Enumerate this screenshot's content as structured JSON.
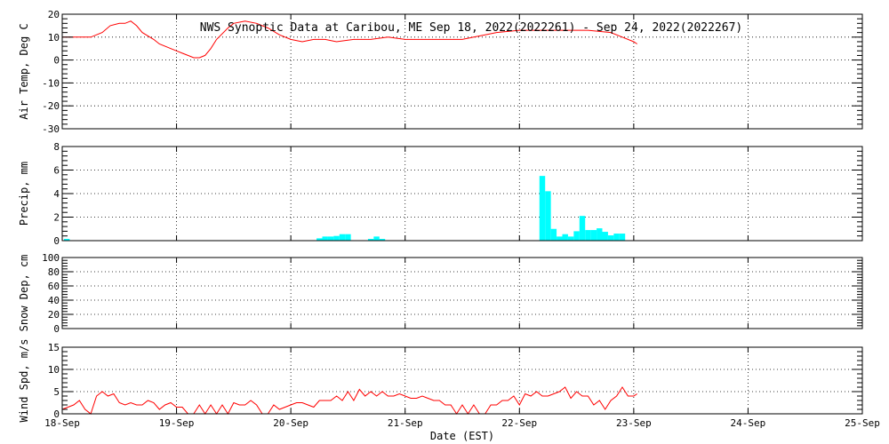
{
  "title": "NWS Synoptic Data at Caribou, ME   Sep 18, 2022(2022261) - Sep 24, 2022(2022267)",
  "xlabel": "Date (EST)",
  "colors": {
    "line": "#ff0000",
    "bar": "#00ffff",
    "axis": "#000000",
    "background": "#ffffff"
  },
  "chart_data": [
    {
      "type": "line",
      "title": "NWS Synoptic Data at Caribou, ME   Sep 18, 2022(2022261) - Sep 24, 2022(2022267)",
      "ylabel": "Air Temp, Deg C",
      "xlabel": "",
      "xlim": [
        0,
        7
      ],
      "ylim": [
        -30,
        20
      ],
      "yticks": [
        20,
        10,
        0,
        -10,
        -20,
        -30
      ],
      "xticks": [
        "18-Sep",
        "19-Sep",
        "20-Sep",
        "21-Sep",
        "22-Sep",
        "23-Sep",
        "24-Sep",
        "25-Sep"
      ],
      "grid": true,
      "series": [
        {
          "values": [
            [
              0.0,
              10
            ],
            [
              0.25,
              10
            ],
            [
              0.35,
              12
            ],
            [
              0.42,
              15
            ],
            [
              0.5,
              16
            ],
            [
              0.55,
              16
            ],
            [
              0.6,
              17
            ],
            [
              0.65,
              15
            ],
            [
              0.7,
              12
            ],
            [
              0.8,
              9
            ],
            [
              0.85,
              7
            ],
            [
              0.95,
              5
            ],
            [
              1.0,
              4
            ],
            [
              1.05,
              3
            ],
            [
              1.1,
              2
            ],
            [
              1.15,
              1
            ],
            [
              1.2,
              1
            ],
            [
              1.25,
              2
            ],
            [
              1.3,
              5
            ],
            [
              1.35,
              9
            ],
            [
              1.45,
              14
            ],
            [
              1.5,
              16
            ],
            [
              1.6,
              17
            ],
            [
              1.7,
              16
            ],
            [
              1.8,
              14
            ],
            [
              1.9,
              11
            ],
            [
              2.0,
              9
            ],
            [
              2.1,
              8
            ],
            [
              2.2,
              9
            ],
            [
              2.3,
              9
            ],
            [
              2.4,
              8
            ],
            [
              2.55,
              9
            ],
            [
              2.7,
              9
            ],
            [
              2.85,
              10
            ],
            [
              3.0,
              9
            ],
            [
              3.2,
              9
            ],
            [
              3.4,
              9
            ],
            [
              3.5,
              9
            ],
            [
              3.6,
              10
            ],
            [
              3.7,
              11
            ],
            [
              3.8,
              12
            ],
            [
              4.0,
              13
            ],
            [
              4.2,
              13
            ],
            [
              4.4,
              13
            ],
            [
              4.6,
              13
            ],
            [
              4.8,
              12
            ],
            [
              4.9,
              10
            ],
            [
              5.0,
              8
            ],
            [
              5.03,
              7
            ]
          ]
        }
      ]
    },
    {
      "type": "bar",
      "ylabel": "Precip, mm",
      "xlabel": "",
      "xlim": [
        0,
        7
      ],
      "ylim": [
        0,
        8
      ],
      "yticks": [
        8,
        6,
        4,
        2,
        0
      ],
      "xticks": [
        "18-Sep",
        "19-Sep",
        "20-Sep",
        "21-Sep",
        "22-Sep",
        "23-Sep",
        "24-Sep",
        "25-Sep"
      ],
      "grid": true,
      "series": [
        {
          "values": [
            [
              0.04,
              0.15
            ],
            [
              2.25,
              0.2
            ],
            [
              2.3,
              0.35
            ],
            [
              2.35,
              0.35
            ],
            [
              2.4,
              0.4
            ],
            [
              2.45,
              0.55
            ],
            [
              2.5,
              0.55
            ],
            [
              2.7,
              0.15
            ],
            [
              2.75,
              0.35
            ],
            [
              2.8,
              0.15
            ],
            [
              4.2,
              5.5
            ],
            [
              4.25,
              4.2
            ],
            [
              4.3,
              1.0
            ],
            [
              4.35,
              0.35
            ],
            [
              4.4,
              0.55
            ],
            [
              4.45,
              0.35
            ],
            [
              4.5,
              0.8
            ],
            [
              4.55,
              2.1
            ],
            [
              4.6,
              0.9
            ],
            [
              4.65,
              0.9
            ],
            [
              4.7,
              1.05
            ],
            [
              4.75,
              0.75
            ],
            [
              4.8,
              0.45
            ],
            [
              4.85,
              0.6
            ],
            [
              4.9,
              0.6
            ]
          ]
        }
      ]
    },
    {
      "type": "line",
      "ylabel": "Snow Dep, cm",
      "xlabel": "",
      "xlim": [
        0,
        7
      ],
      "ylim": [
        0,
        100
      ],
      "yticks": [
        100,
        80,
        60,
        40,
        20,
        0
      ],
      "xticks": [
        "18-Sep",
        "19-Sep",
        "20-Sep",
        "21-Sep",
        "22-Sep",
        "23-Sep",
        "24-Sep",
        "25-Sep"
      ],
      "grid": true,
      "series": [
        {
          "values": []
        }
      ]
    },
    {
      "type": "line",
      "ylabel": "Wind Spd, m/s",
      "xlabel": "Date (EST)",
      "xlim": [
        0,
        7
      ],
      "ylim": [
        0,
        15
      ],
      "yticks": [
        15,
        10,
        5,
        0
      ],
      "xticks": [
        "18-Sep",
        "19-Sep",
        "20-Sep",
        "21-Sep",
        "22-Sep",
        "23-Sep",
        "24-Sep",
        "25-Sep"
      ],
      "grid": true,
      "series": [
        {
          "values": [
            [
              0.0,
              1
            ],
            [
              0.05,
              1.5
            ],
            [
              0.1,
              2
            ],
            [
              0.15,
              3
            ],
            [
              0.2,
              1
            ],
            [
              0.25,
              0
            ],
            [
              0.3,
              4
            ],
            [
              0.35,
              5
            ],
            [
              0.4,
              4
            ],
            [
              0.45,
              4.5
            ],
            [
              0.5,
              2.5
            ],
            [
              0.55,
              2
            ],
            [
              0.6,
              2.5
            ],
            [
              0.65,
              2
            ],
            [
              0.7,
              2
            ],
            [
              0.75,
              3
            ],
            [
              0.8,
              2.5
            ],
            [
              0.85,
              1
            ],
            [
              0.9,
              2
            ],
            [
              0.95,
              2.5
            ],
            [
              1.0,
              1.5
            ],
            [
              1.05,
              1.5
            ],
            [
              1.1,
              0
            ],
            [
              1.15,
              0
            ],
            [
              1.2,
              2
            ],
            [
              1.25,
              0
            ],
            [
              1.3,
              2
            ],
            [
              1.35,
              0
            ],
            [
              1.4,
              2
            ],
            [
              1.45,
              0
            ],
            [
              1.5,
              2.5
            ],
            [
              1.55,
              2
            ],
            [
              1.6,
              2
            ],
            [
              1.65,
              3
            ],
            [
              1.7,
              2
            ],
            [
              1.75,
              0
            ],
            [
              1.8,
              0
            ],
            [
              1.85,
              2
            ],
            [
              1.9,
              1
            ],
            [
              1.95,
              1.5
            ],
            [
              2.0,
              2
            ],
            [
              2.05,
              2.5
            ],
            [
              2.1,
              2.5
            ],
            [
              2.15,
              2
            ],
            [
              2.2,
              1.5
            ],
            [
              2.25,
              3
            ],
            [
              2.3,
              3
            ],
            [
              2.35,
              3
            ],
            [
              2.4,
              4
            ],
            [
              2.45,
              3
            ],
            [
              2.5,
              5
            ],
            [
              2.55,
              3
            ],
            [
              2.6,
              5.5
            ],
            [
              2.65,
              4
            ],
            [
              2.7,
              5
            ],
            [
              2.75,
              4
            ],
            [
              2.8,
              5
            ],
            [
              2.85,
              4
            ],
            [
              2.9,
              4
            ],
            [
              2.95,
              4.5
            ],
            [
              3.0,
              4
            ],
            [
              3.05,
              3.5
            ],
            [
              3.1,
              3.5
            ],
            [
              3.15,
              4
            ],
            [
              3.2,
              3.5
            ],
            [
              3.25,
              3
            ],
            [
              3.3,
              3
            ],
            [
              3.35,
              2
            ],
            [
              3.4,
              2
            ],
            [
              3.45,
              0
            ],
            [
              3.5,
              2
            ],
            [
              3.55,
              0
            ],
            [
              3.6,
              2
            ],
            [
              3.65,
              0
            ],
            [
              3.7,
              0
            ],
            [
              3.75,
              2
            ],
            [
              3.8,
              2
            ],
            [
              3.85,
              3
            ],
            [
              3.9,
              3
            ],
            [
              3.95,
              4
            ],
            [
              4.0,
              2
            ],
            [
              4.05,
              4.5
            ],
            [
              4.1,
              4
            ],
            [
              4.15,
              5
            ],
            [
              4.2,
              4
            ],
            [
              4.25,
              4
            ],
            [
              4.3,
              4.5
            ],
            [
              4.35,
              5
            ],
            [
              4.4,
              6
            ],
            [
              4.45,
              3.5
            ],
            [
              4.5,
              5
            ],
            [
              4.55,
              4
            ],
            [
              4.6,
              4
            ],
            [
              4.65,
              2
            ],
            [
              4.7,
              3
            ],
            [
              4.75,
              1
            ],
            [
              4.8,
              3
            ],
            [
              4.85,
              4
            ],
            [
              4.9,
              6
            ],
            [
              4.95,
              4
            ],
            [
              5.0,
              4
            ],
            [
              5.03,
              4.5
            ]
          ]
        }
      ]
    }
  ]
}
